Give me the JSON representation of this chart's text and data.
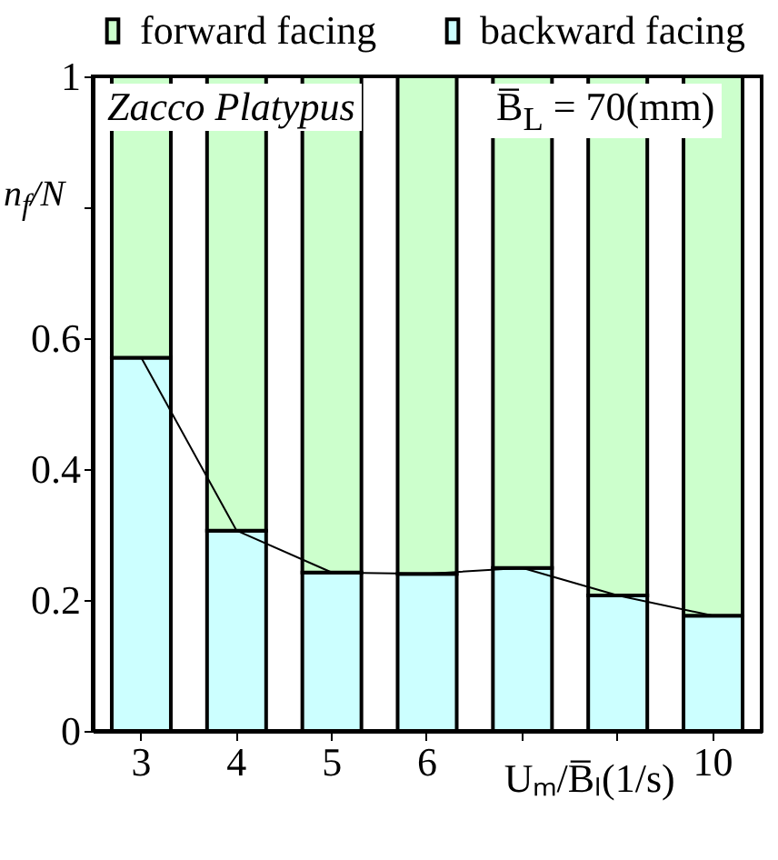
{
  "chart_data": {
    "type": "bar",
    "stacked": true,
    "xlabel": "Uₘ/B̅ₗ(1/s)",
    "ylabel": "n$_{f}$/N",
    "categories": [
      "3",
      "4",
      "5",
      "6",
      null,
      null,
      "10"
    ],
    "series": [
      {
        "name": "backward facing",
        "color": "#ccffff",
        "values": [
          0.57,
          0.306,
          0.242,
          0.24,
          0.249,
          0.207,
          0.176
        ]
      },
      {
        "name": "forward facing",
        "color": "#ccffcc",
        "values": [
          0.43,
          0.694,
          0.758,
          0.76,
          0.751,
          0.793,
          0.824
        ]
      },
      {
        "type": "line",
        "color": "#000000",
        "values": [
          0.57,
          0.306,
          0.242,
          0.24,
          0.249,
          0.207,
          0.176
        ]
      }
    ],
    "ylim": [
      0,
      1
    ],
    "yticks": [
      0,
      0.2,
      0.4,
      0.6,
      {
        "value": 0.8,
        "label": null
      },
      1
    ],
    "legend": "top",
    "marker": "none",
    "line_style": "solid",
    "annotations": [
      "Zacco Platypus",
      "B̅$_{L}$ = 70(mm)"
    ]
  }
}
